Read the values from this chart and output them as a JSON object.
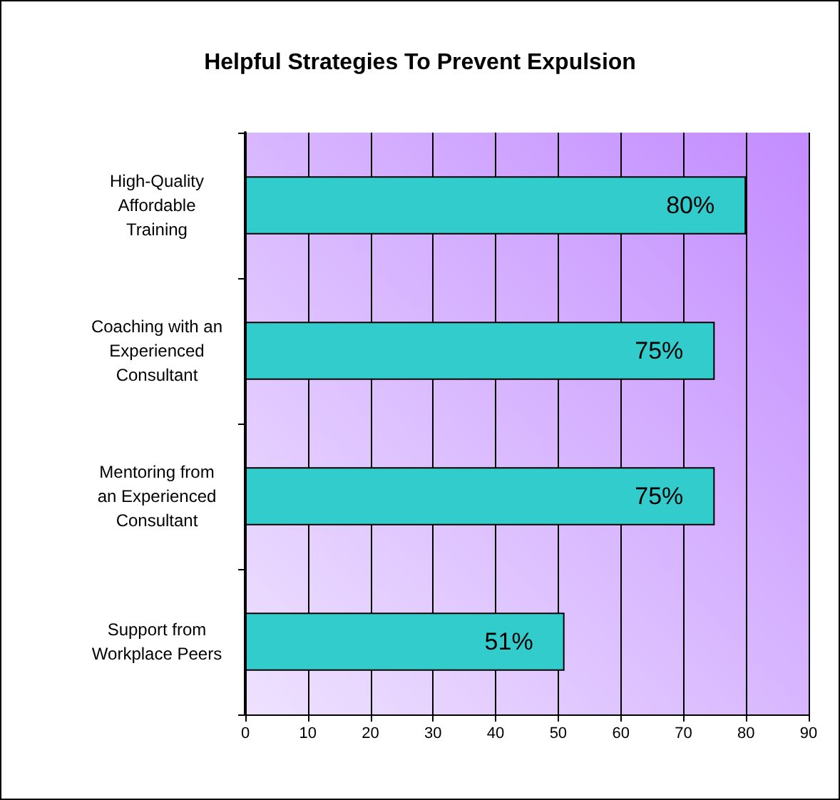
{
  "chart_data": {
    "type": "bar",
    "orientation": "horizontal",
    "title": "Helpful Strategies To Prevent Expulsion",
    "categories": [
      "High-Quality\nAffordable\nTraining",
      "Coaching with an\nExperienced\nConsultant",
      "Mentoring from\nan Experienced\nConsultant",
      "Support from\nWorkplace Peers"
    ],
    "values": [
      80,
      75,
      75,
      51
    ],
    "value_labels": [
      "80%",
      "75%",
      "75%",
      "51%"
    ],
    "color": "#33cccc",
    "xlim": [
      0,
      90
    ],
    "xticks": [
      0,
      10,
      20,
      30,
      40,
      50,
      60,
      70,
      80,
      90
    ],
    "grid": "x"
  }
}
